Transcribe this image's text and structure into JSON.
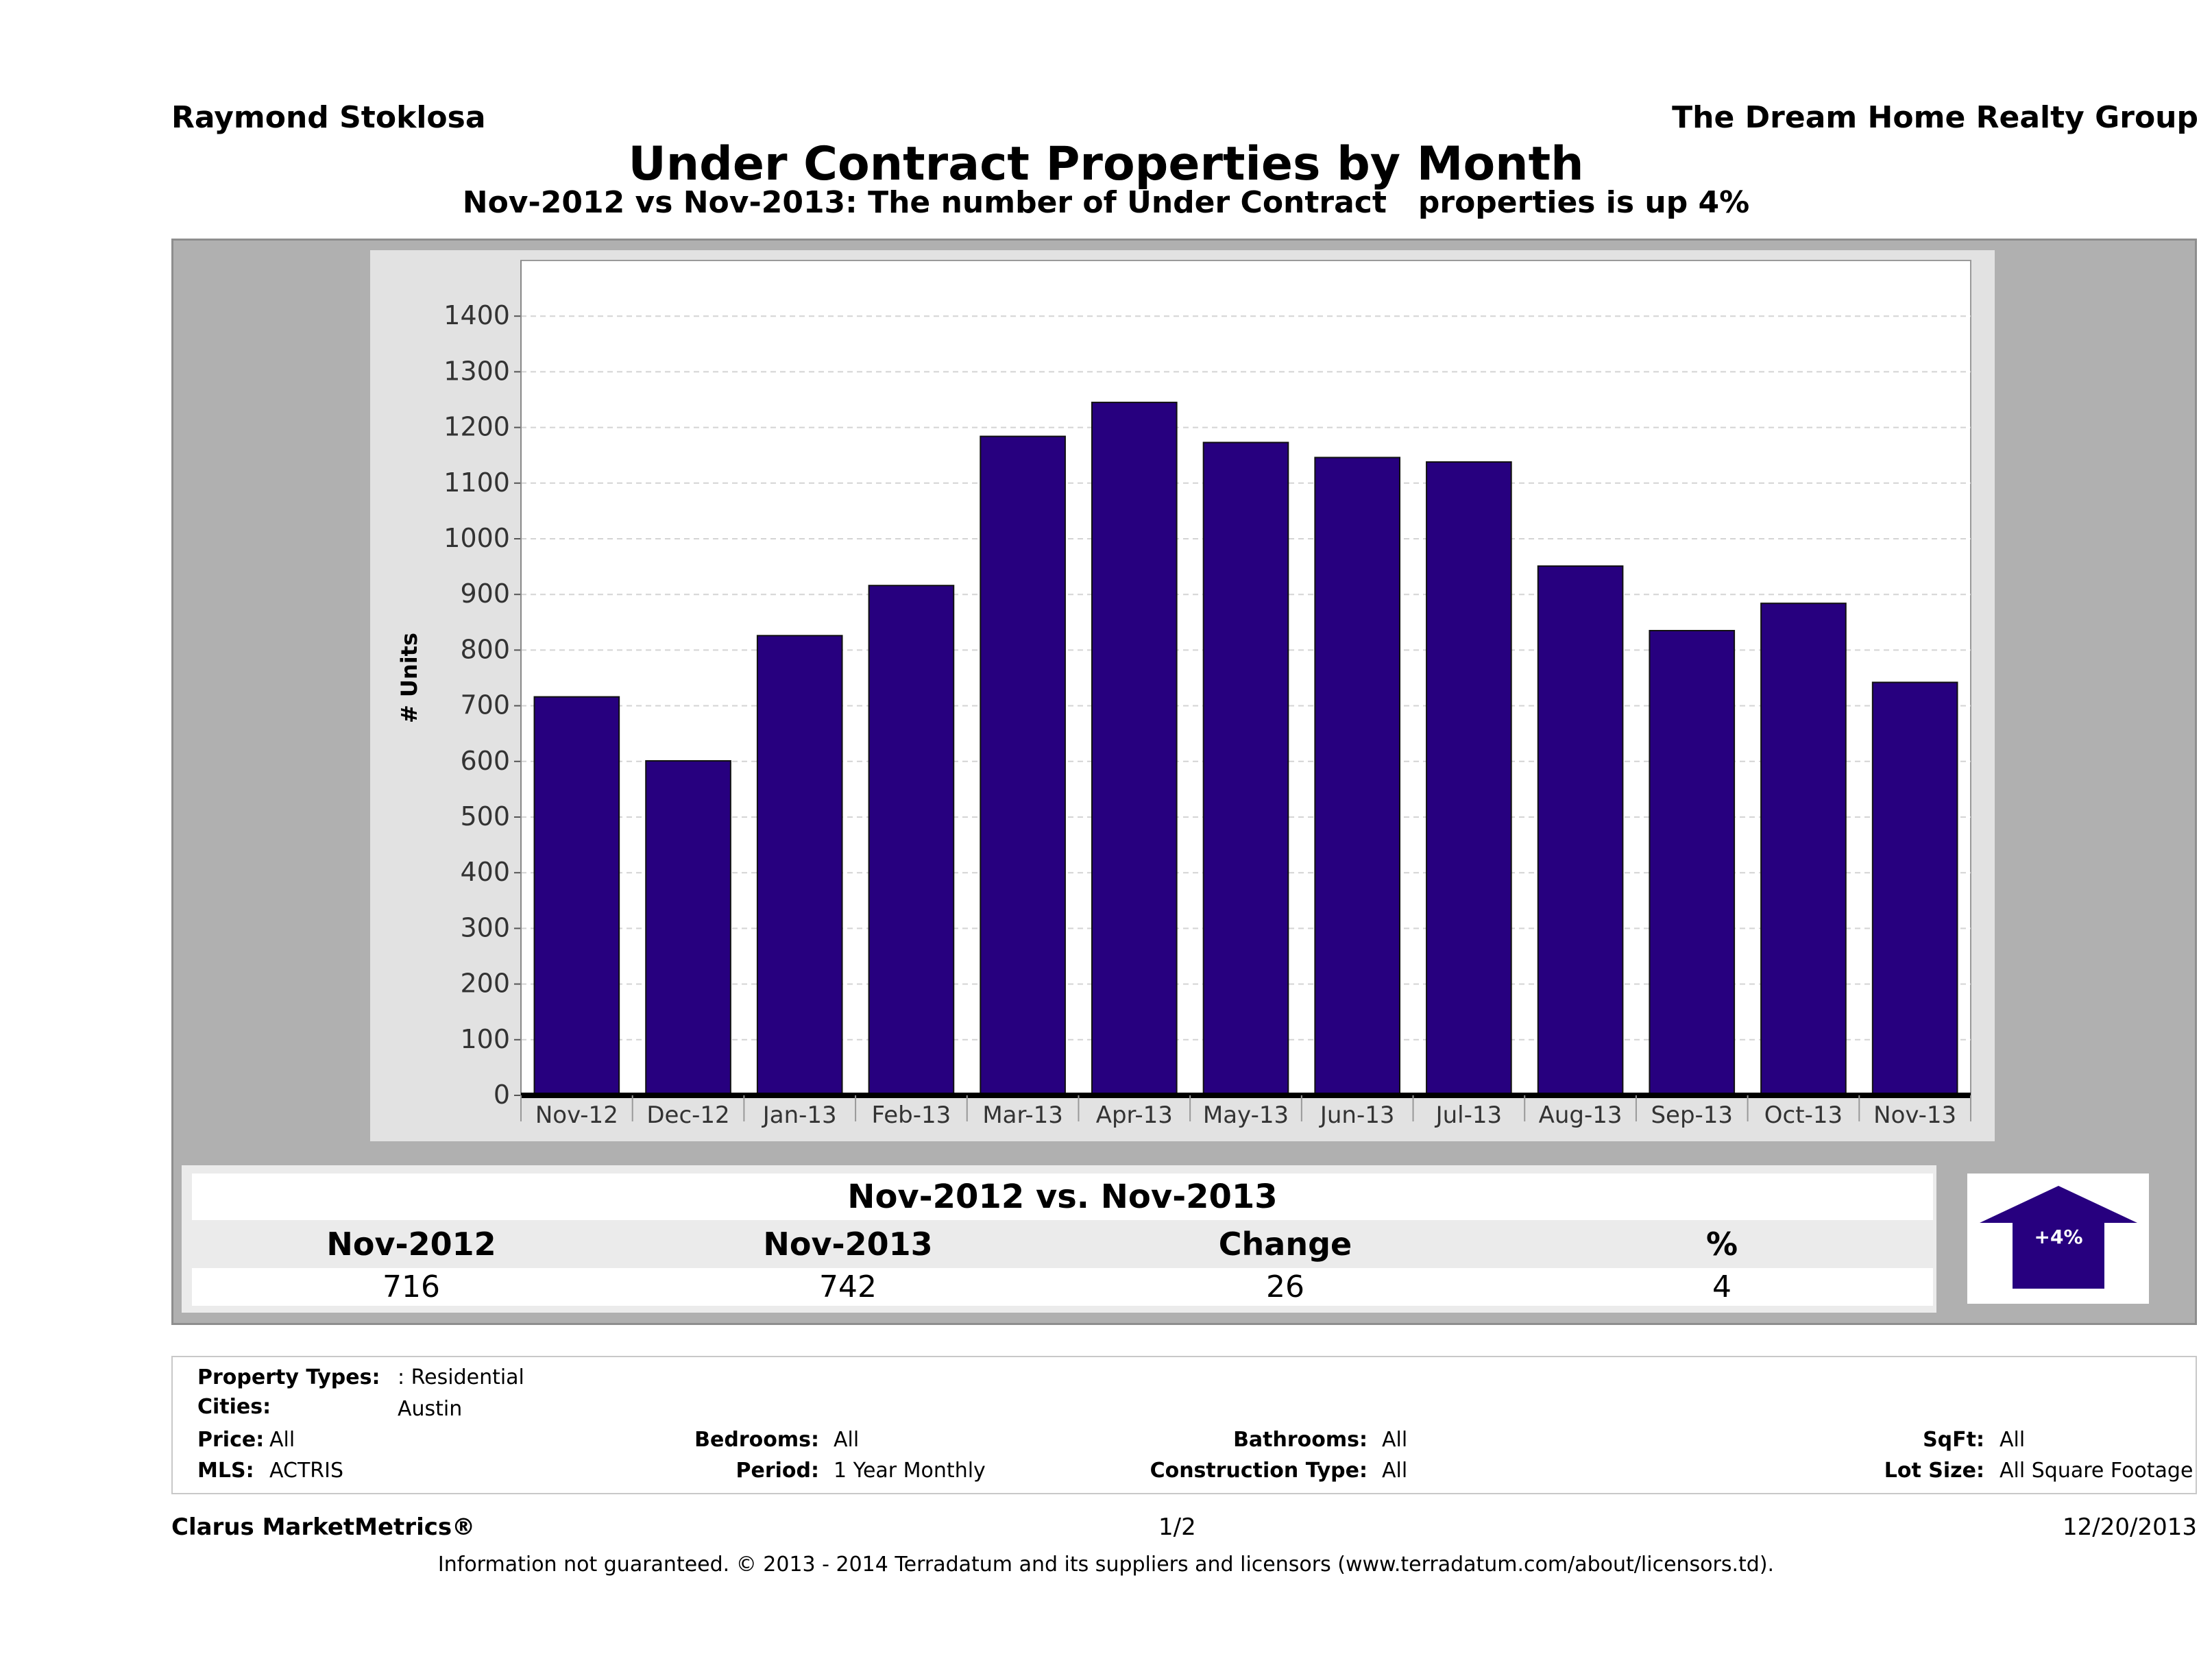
{
  "header": {
    "agent": "Raymond Stoklosa",
    "company": "The Dream Home Realty Group",
    "title": "Under Contract Properties by Month",
    "subtitle": "Nov-2012 vs Nov-2013: The number of Under Contract   properties is up 4%"
  },
  "chart_data": {
    "type": "bar",
    "ylabel": "# Units",
    "xlabel": "",
    "categories": [
      "Nov-12",
      "Dec-12",
      "Jan-13",
      "Feb-13",
      "Mar-13",
      "Apr-13",
      "May-13",
      "Jun-13",
      "Jul-13",
      "Aug-13",
      "Sep-13",
      "Oct-13",
      "Nov-13"
    ],
    "values": [
      716,
      601,
      826,
      916,
      1184,
      1245,
      1173,
      1146,
      1138,
      951,
      835,
      884,
      742
    ],
    "ylim": [
      0,
      1500
    ],
    "yticks": [
      0,
      100,
      200,
      300,
      400,
      500,
      600,
      700,
      800,
      900,
      1000,
      1100,
      1200,
      1300,
      1400
    ],
    "grid": true,
    "bar_color": "#27007f"
  },
  "summary": {
    "heading": "Nov-2012 vs. Nov-2013",
    "columns": [
      "Nov-2012",
      "Nov-2013",
      "Change",
      "%"
    ],
    "values": [
      "716",
      "742",
      "26",
      "4"
    ],
    "badge": "+4%",
    "badge_color": "#27007f"
  },
  "filters": {
    "property_types_label": "Property Types:",
    "property_types_value": ": Residential",
    "cities_label": "Cities:",
    "cities_value": "Austin",
    "price_label": "Price:",
    "price_value": "All",
    "bedrooms_label": "Bedrooms:",
    "bedrooms_value": "All",
    "bathrooms_label": "Bathrooms:",
    "bathrooms_value": "All",
    "sqft_label": "SqFt:",
    "sqft_value": "All",
    "mls_label": "MLS:",
    "mls_value": "ACTRIS",
    "period_label": "Period:",
    "period_value": "1 Year Monthly",
    "construction_label": "Construction Type:",
    "construction_value": "All",
    "lot_label": "Lot Size:",
    "lot_value": "All Square Footage"
  },
  "footer": {
    "brand": "Clarus MarketMetrics®",
    "page": "1/2",
    "date": "12/20/2013",
    "disclaimer": "Information not guaranteed. © 2013 - 2014 Terradatum and its suppliers and licensors (www.terradatum.com/about/licensors.td)."
  }
}
